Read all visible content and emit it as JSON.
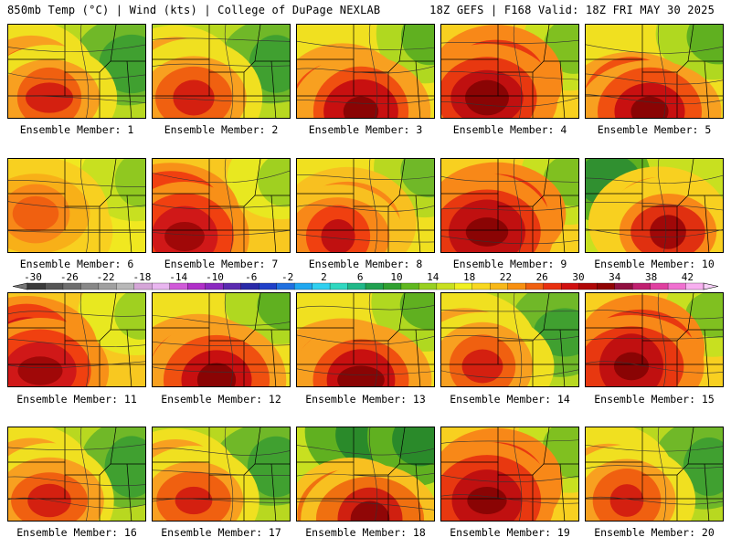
{
  "header": {
    "left": "850mb Temp (°C) | Wind (kts) | College of DuPage NEXLAB",
    "right": "18Z GEFS | F168 Valid: 18Z FRI MAY 30 2025"
  },
  "caption_prefix": "Ensemble Member: ",
  "members": [
    {
      "label": "Ensemble Member: 1",
      "palette": "warm-west-green-east"
    },
    {
      "label": "Ensemble Member: 2",
      "palette": "warm-west-green-east"
    },
    {
      "label": "Ensemble Member: 3",
      "palette": "hot-south"
    },
    {
      "label": "Ensemble Member: 4",
      "palette": "hot-center"
    },
    {
      "label": "Ensemble Member: 5",
      "palette": "hot-south"
    },
    {
      "label": "Ensemble Member: 6",
      "palette": "mild"
    },
    {
      "label": "Ensemble Member: 7",
      "palette": "hot-west"
    },
    {
      "label": "Ensemble Member: 8",
      "palette": "mild-hot-center"
    },
    {
      "label": "Ensemble Member: 9",
      "palette": "hot-center"
    },
    {
      "label": "Ensemble Member: 10",
      "palette": "green-nw-hot-center"
    },
    {
      "label": "Ensemble Member: 11",
      "palette": "hot-west"
    },
    {
      "label": "Ensemble Member: 12",
      "palette": "hot-south"
    },
    {
      "label": "Ensemble Member: 13",
      "palette": "hot-south"
    },
    {
      "label": "Ensemble Member: 14",
      "palette": "warm-west-green-east"
    },
    {
      "label": "Ensemble Member: 15",
      "palette": "hot-center"
    },
    {
      "label": "Ensemble Member: 16",
      "palette": "warm-west-green-east"
    },
    {
      "label": "Ensemble Member: 17",
      "palette": "warm-west-green-east"
    },
    {
      "label": "Ensemble Member: 18",
      "palette": "green-north-hot-south"
    },
    {
      "label": "Ensemble Member: 19",
      "palette": "hot-center"
    },
    {
      "label": "Ensemble Member: 20",
      "palette": "warm-west-green-east"
    }
  ],
  "colorbar": {
    "tick_labels": [
      "-30",
      "-26",
      "-22",
      "-18",
      "-14",
      "-10",
      "-6",
      "-2",
      "2",
      "6",
      "10",
      "14",
      "18",
      "22",
      "26",
      "30",
      "34",
      "38",
      "42"
    ],
    "colors": [
      "#3a3a3a",
      "#555555",
      "#6e6e6e",
      "#888888",
      "#a0a0a0",
      "#b8b8b8",
      "#d5a6d8",
      "#e9b6f0",
      "#d05ad8",
      "#b030c8",
      "#8b2ac0",
      "#5a2ab0",
      "#2a2aa8",
      "#2040c8",
      "#2070e0",
      "#20a8f0",
      "#30d0f0",
      "#30d8c0",
      "#20b888",
      "#20a050",
      "#30a030",
      "#60b820",
      "#98d020",
      "#c8e020",
      "#f0f020",
      "#f8d820",
      "#f8b818",
      "#f89010",
      "#f06010",
      "#e83010",
      "#d01010",
      "#b00808",
      "#900404",
      "#901040",
      "#c02070",
      "#e040a0",
      "#f070d0",
      "#f8b0f0"
    ]
  }
}
